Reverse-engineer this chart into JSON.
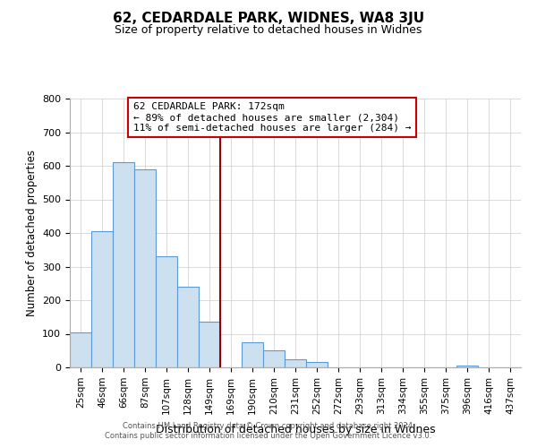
{
  "title": "62, CEDARDALE PARK, WIDNES, WA8 3JU",
  "subtitle": "Size of property relative to detached houses in Widnes",
  "xlabel": "Distribution of detached houses by size in Widnes",
  "ylabel": "Number of detached properties",
  "bar_labels": [
    "25sqm",
    "46sqm",
    "66sqm",
    "87sqm",
    "107sqm",
    "128sqm",
    "149sqm",
    "169sqm",
    "190sqm",
    "210sqm",
    "231sqm",
    "252sqm",
    "272sqm",
    "293sqm",
    "313sqm",
    "334sqm",
    "355sqm",
    "375sqm",
    "396sqm",
    "416sqm",
    "437sqm"
  ],
  "bar_heights": [
    105,
    405,
    610,
    590,
    330,
    240,
    135,
    0,
    75,
    50,
    25,
    15,
    0,
    0,
    0,
    0,
    0,
    0,
    5,
    0,
    0
  ],
  "bar_color": "#cce0f0",
  "bar_edge_color": "#5b9bd5",
  "vline_x": 7.0,
  "vline_color": "#990000",
  "ylim": [
    0,
    800
  ],
  "yticks": [
    0,
    100,
    200,
    300,
    400,
    500,
    600,
    700,
    800
  ],
  "annotation_title": "62 CEDARDALE PARK: 172sqm",
  "annotation_line1": "← 89% of detached houses are smaller (2,304)",
  "annotation_line2": "11% of semi-detached houses are larger (284) →",
  "annotation_box_color": "#ffffff",
  "annotation_box_edge": "#cc0000",
  "footer1": "Contains HM Land Registry data © Crown copyright and database right 2024.",
  "footer2": "Contains public sector information licensed under the Open Government Licence v3.0.",
  "bg_color": "#ffffff",
  "grid_color": "#cccccc"
}
